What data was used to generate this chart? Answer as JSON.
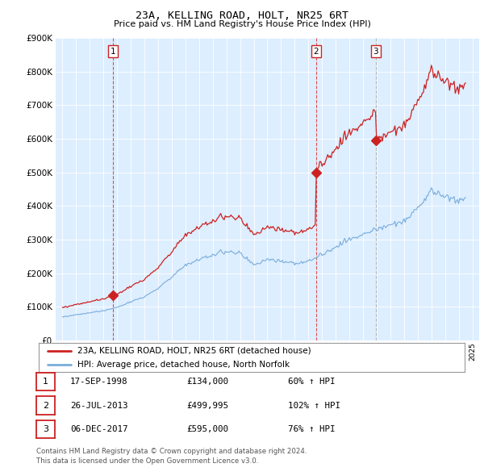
{
  "title": "23A, KELLING ROAD, HOLT, NR25 6RT",
  "subtitle": "Price paid vs. HM Land Registry's House Price Index (HPI)",
  "legend_line1": "23A, KELLING ROAD, HOLT, NR25 6RT (detached house)",
  "legend_line2": "HPI: Average price, detached house, North Norfolk",
  "footer1": "Contains HM Land Registry data © Crown copyright and database right 2024.",
  "footer2": "This data is licensed under the Open Government Licence v3.0.",
  "transactions": [
    {
      "num": 1,
      "date_label": "17-SEP-1998",
      "price": 134000,
      "price_fmt": "£134,000",
      "pct": "60%",
      "direction": "↑",
      "year_x": 1998.71,
      "vline_color": "#dd3333",
      "vline_style": "--"
    },
    {
      "num": 2,
      "date_label": "26-JUL-2013",
      "price": 499995,
      "price_fmt": "£499,995",
      "pct": "102%",
      "direction": "↑",
      "year_x": 2013.56,
      "vline_color": "#dd3333",
      "vline_style": "--"
    },
    {
      "num": 3,
      "date_label": "06-DEC-2017",
      "price": 595000,
      "price_fmt": "£595,000",
      "pct": "76%",
      "direction": "↑",
      "year_x": 2017.92,
      "vline_color": "#aaaaaa",
      "vline_style": "--"
    }
  ],
  "hpi_color": "#7aaddb",
  "price_color": "#cc2222",
  "ylim": [
    0,
    900000
  ],
  "yticks": [
    0,
    100000,
    200000,
    300000,
    400000,
    500000,
    600000,
    700000,
    800000,
    900000
  ],
  "xlim_start": 1994.5,
  "xlim_end": 2025.5,
  "chart_bg_color": "#ddeeff",
  "background_color": "#ffffff",
  "grid_color": "#ffffff"
}
